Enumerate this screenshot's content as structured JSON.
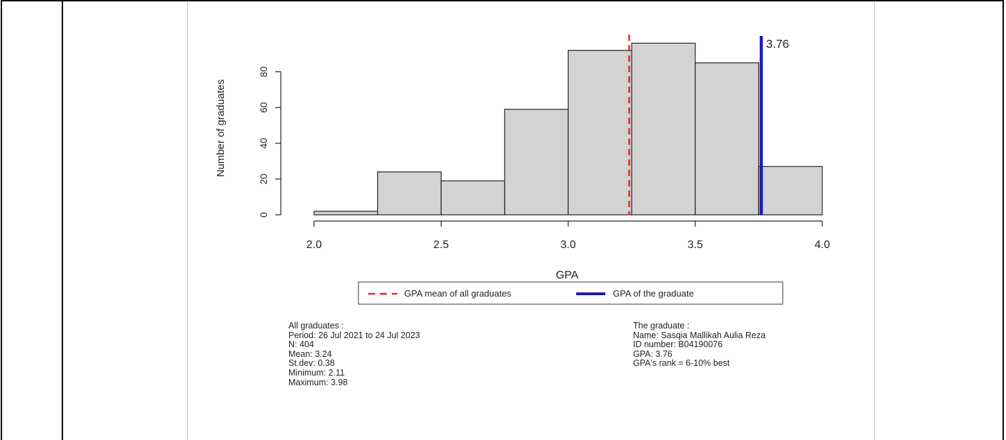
{
  "chart_data": {
    "type": "bar",
    "xlabel": "GPA",
    "ylabel": "Number of graduates",
    "xlim": [
      2.0,
      4.0
    ],
    "ylim": [
      0,
      95
    ],
    "x_ticks": [
      "2.0",
      "2.5",
      "3.0",
      "3.5",
      "4.0"
    ],
    "y_ticks": [
      "0",
      "20",
      "40",
      "60",
      "80"
    ],
    "bins": [
      {
        "from": 2.0,
        "to": 2.25,
        "count": 2
      },
      {
        "from": 2.25,
        "to": 2.5,
        "count": 24
      },
      {
        "from": 2.5,
        "to": 2.75,
        "count": 19
      },
      {
        "from": 2.75,
        "to": 3.0,
        "count": 59
      },
      {
        "from": 3.0,
        "to": 3.25,
        "count": 92
      },
      {
        "from": 3.25,
        "to": 3.5,
        "count": 96
      },
      {
        "from": 3.5,
        "to": 3.75,
        "count": 85
      },
      {
        "from": 3.75,
        "to": 4.0,
        "count": 27
      }
    ],
    "mean_line": {
      "value": 3.24,
      "color": "#e8202a",
      "style": "dashed"
    },
    "graduate_line": {
      "value": 3.76,
      "label": "3.76",
      "color": "#1a1ab4"
    },
    "legend": [
      {
        "label": "GPA mean of all graduates",
        "color": "#e8202a",
        "style": "dashed"
      },
      {
        "label": "GPA of the graduate",
        "color": "#1a1ab4",
        "style": "solid"
      }
    ],
    "legend_placement": "bottom-center",
    "bar_fill": "#d3d3d3",
    "grid": false
  },
  "summary_all": {
    "heading": "All graduates :",
    "period": "Period:  26 Jul 2021  to  24 Jul 2023",
    "n": "N:  404",
    "mean": "Mean:  3.24",
    "stdev": "St.dev:  0.38",
    "minimum": "Minimum:  2.11",
    "maximum": "Maximum:  3.98"
  },
  "summary_graduate": {
    "heading": "The graduate :",
    "name": "Name: Sasqia Mallikah Aulia Reza",
    "id": "ID number: B04190076",
    "gpa": "GPA: 3.76",
    "rank": "GPA's rank = 6-10% best"
  }
}
